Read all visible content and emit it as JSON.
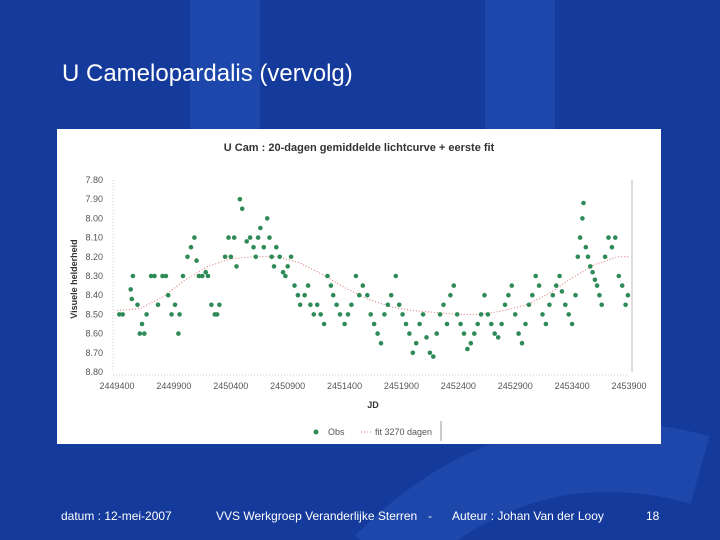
{
  "slide": {
    "title": "U Camelopardalis (vervolg)"
  },
  "footer": {
    "date": "datum : 12-mei-2007",
    "org": "VVS Werkgroep Veranderlijke Sterren",
    "separator": "-",
    "author": "Auteur : Johan Van der Looy",
    "page": "18"
  },
  "colors": {
    "background": "#143a9c",
    "decor": "#1d47ab",
    "obs": "#2e8b57",
    "fit": "#e07070",
    "text": "#ffffff"
  },
  "chart_data": {
    "type": "scatter",
    "title": "U Cam : 20-dagen gemiddelde lichtcurve + eerste fit",
    "xlabel": "JD",
    "ylabel": "Visuele helderheid",
    "xlim": [
      2449400,
      2453900
    ],
    "ylim": [
      8.8,
      7.8
    ],
    "y_inverted": true,
    "xticks": [
      2449400,
      2449900,
      2450400,
      2450900,
      2451400,
      2451900,
      2452400,
      2452900,
      2453400,
      2453900
    ],
    "yticks": [
      7.8,
      7.9,
      8.0,
      8.1,
      8.2,
      8.3,
      8.4,
      8.5,
      8.6,
      8.7,
      8.8
    ],
    "ytick_labels": [
      "7.80",
      "7.90",
      "8.00",
      "8.10",
      "8.20",
      "8.30",
      "8.40",
      "8.50",
      "8.60",
      "8.70",
      "8.80"
    ],
    "grid": false,
    "legend_position": "bottom",
    "series": [
      {
        "name": "Obs",
        "type": "scatter",
        "points": [
          [
            2449420,
            8.5
          ],
          [
            2449450,
            8.5
          ],
          [
            2449520,
            8.37
          ],
          [
            2449530,
            8.42
          ],
          [
            2449540,
            8.3
          ],
          [
            2449580,
            8.45
          ],
          [
            2449600,
            8.6
          ],
          [
            2449620,
            8.55
          ],
          [
            2449640,
            8.6
          ],
          [
            2449660,
            8.5
          ],
          [
            2449700,
            8.3
          ],
          [
            2449730,
            8.3
          ],
          [
            2449760,
            8.45
          ],
          [
            2449800,
            8.3
          ],
          [
            2449830,
            8.3
          ],
          [
            2449850,
            8.4
          ],
          [
            2449880,
            8.5
          ],
          [
            2449910,
            8.45
          ],
          [
            2449940,
            8.6
          ],
          [
            2449950,
            8.5
          ],
          [
            2449980,
            8.3
          ],
          [
            2450020,
            8.2
          ],
          [
            2450050,
            8.15
          ],
          [
            2450080,
            8.1
          ],
          [
            2450100,
            8.22
          ],
          [
            2450120,
            8.3
          ],
          [
            2450150,
            8.3
          ],
          [
            2450180,
            8.28
          ],
          [
            2450200,
            8.3
          ],
          [
            2450230,
            8.45
          ],
          [
            2450260,
            8.5
          ],
          [
            2450280,
            8.5
          ],
          [
            2450300,
            8.45
          ],
          [
            2450350,
            8.2
          ],
          [
            2450380,
            8.1
          ],
          [
            2450400,
            8.2
          ],
          [
            2450430,
            8.1
          ],
          [
            2450450,
            8.25
          ],
          [
            2450480,
            7.9
          ],
          [
            2450500,
            7.95
          ],
          [
            2450540,
            8.12
          ],
          [
            2450570,
            8.1
          ],
          [
            2450600,
            8.15
          ],
          [
            2450620,
            8.2
          ],
          [
            2450640,
            8.1
          ],
          [
            2450660,
            8.05
          ],
          [
            2450690,
            8.15
          ],
          [
            2450720,
            8.0
          ],
          [
            2450740,
            8.1
          ],
          [
            2450760,
            8.2
          ],
          [
            2450780,
            8.25
          ],
          [
            2450800,
            8.15
          ],
          [
            2450830,
            8.2
          ],
          [
            2450860,
            8.28
          ],
          [
            2450880,
            8.3
          ],
          [
            2450900,
            8.25
          ],
          [
            2450930,
            8.2
          ],
          [
            2450960,
            8.35
          ],
          [
            2450990,
            8.4
          ],
          [
            2451010,
            8.45
          ],
          [
            2451050,
            8.4
          ],
          [
            2451080,
            8.35
          ],
          [
            2451100,
            8.45
          ],
          [
            2451130,
            8.5
          ],
          [
            2451160,
            8.45
          ],
          [
            2451190,
            8.5
          ],
          [
            2451220,
            8.55
          ],
          [
            2451250,
            8.3
          ],
          [
            2451280,
            8.35
          ],
          [
            2451300,
            8.4
          ],
          [
            2451330,
            8.45
          ],
          [
            2451360,
            8.5
          ],
          [
            2451400,
            8.55
          ],
          [
            2451430,
            8.5
          ],
          [
            2451460,
            8.45
          ],
          [
            2451500,
            8.3
          ],
          [
            2451530,
            8.4
          ],
          [
            2451560,
            8.35
          ],
          [
            2451600,
            8.4
          ],
          [
            2451630,
            8.5
          ],
          [
            2451660,
            8.55
          ],
          [
            2451690,
            8.6
          ],
          [
            2451720,
            8.65
          ],
          [
            2451750,
            8.5
          ],
          [
            2451780,
            8.45
          ],
          [
            2451810,
            8.4
          ],
          [
            2451850,
            8.3
          ],
          [
            2451880,
            8.45
          ],
          [
            2451910,
            8.5
          ],
          [
            2451940,
            8.55
          ],
          [
            2451970,
            8.6
          ],
          [
            2452000,
            8.7
          ],
          [
            2452030,
            8.65
          ],
          [
            2452060,
            8.55
          ],
          [
            2452090,
            8.5
          ],
          [
            2452120,
            8.62
          ],
          [
            2452150,
            8.7
          ],
          [
            2452180,
            8.72
          ],
          [
            2452210,
            8.6
          ],
          [
            2452240,
            8.5
          ],
          [
            2452270,
            8.45
          ],
          [
            2452300,
            8.55
          ],
          [
            2452330,
            8.4
          ],
          [
            2452360,
            8.35
          ],
          [
            2452390,
            8.5
          ],
          [
            2452420,
            8.55
          ],
          [
            2452450,
            8.6
          ],
          [
            2452480,
            8.68
          ],
          [
            2452510,
            8.65
          ],
          [
            2452540,
            8.6
          ],
          [
            2452570,
            8.55
          ],
          [
            2452600,
            8.5
          ],
          [
            2452630,
            8.4
          ],
          [
            2452660,
            8.5
          ],
          [
            2452690,
            8.55
          ],
          [
            2452720,
            8.6
          ],
          [
            2452750,
            8.62
          ],
          [
            2452780,
            8.55
          ],
          [
            2452810,
            8.45
          ],
          [
            2452840,
            8.4
          ],
          [
            2452870,
            8.35
          ],
          [
            2452900,
            8.5
          ],
          [
            2452930,
            8.6
          ],
          [
            2452960,
            8.65
          ],
          [
            2452990,
            8.55
          ],
          [
            2453020,
            8.45
          ],
          [
            2453050,
            8.4
          ],
          [
            2453080,
            8.3
          ],
          [
            2453110,
            8.35
          ],
          [
            2453140,
            8.5
          ],
          [
            2453170,
            8.55
          ],
          [
            2453200,
            8.45
          ],
          [
            2453230,
            8.4
          ],
          [
            2453260,
            8.35
          ],
          [
            2453290,
            8.3
          ],
          [
            2453310,
            8.38
          ],
          [
            2453340,
            8.45
          ],
          [
            2453370,
            8.5
          ],
          [
            2453400,
            8.55
          ],
          [
            2453430,
            8.4
          ],
          [
            2453450,
            8.2
          ],
          [
            2453470,
            8.1
          ],
          [
            2453490,
            8.0
          ],
          [
            2453500,
            7.92
          ],
          [
            2453520,
            8.15
          ],
          [
            2453540,
            8.2
          ],
          [
            2453560,
            8.25
          ],
          [
            2453580,
            8.28
          ],
          [
            2453600,
            8.32
          ],
          [
            2453620,
            8.35
          ],
          [
            2453640,
            8.4
          ],
          [
            2453660,
            8.45
          ],
          [
            2453690,
            8.2
          ],
          [
            2453720,
            8.1
          ],
          [
            2453750,
            8.15
          ],
          [
            2453780,
            8.1
          ],
          [
            2453810,
            8.3
          ],
          [
            2453840,
            8.35
          ],
          [
            2453870,
            8.45
          ],
          [
            2453890,
            8.4
          ]
        ]
      },
      {
        "name": "fit 3270 dagen",
        "type": "line",
        "style": "dotted",
        "period": 3270,
        "points": [
          [
            2449400,
            8.48
          ],
          [
            2449600,
            8.47
          ],
          [
            2449800,
            8.41
          ],
          [
            2450000,
            8.32
          ],
          [
            2450200,
            8.25
          ],
          [
            2450400,
            8.21
          ],
          [
            2450600,
            8.2
          ],
          [
            2450800,
            8.2
          ],
          [
            2451000,
            8.23
          ],
          [
            2451200,
            8.29
          ],
          [
            2451400,
            8.36
          ],
          [
            2451600,
            8.42
          ],
          [
            2451800,
            8.46
          ],
          [
            2452000,
            8.48
          ],
          [
            2452200,
            8.49
          ],
          [
            2452400,
            8.5
          ],
          [
            2452600,
            8.5
          ],
          [
            2452800,
            8.48
          ],
          [
            2453000,
            8.45
          ],
          [
            2453200,
            8.39
          ],
          [
            2453400,
            8.31
          ],
          [
            2453600,
            8.24
          ],
          [
            2453800,
            8.2
          ],
          [
            2453900,
            8.2
          ]
        ]
      }
    ]
  }
}
